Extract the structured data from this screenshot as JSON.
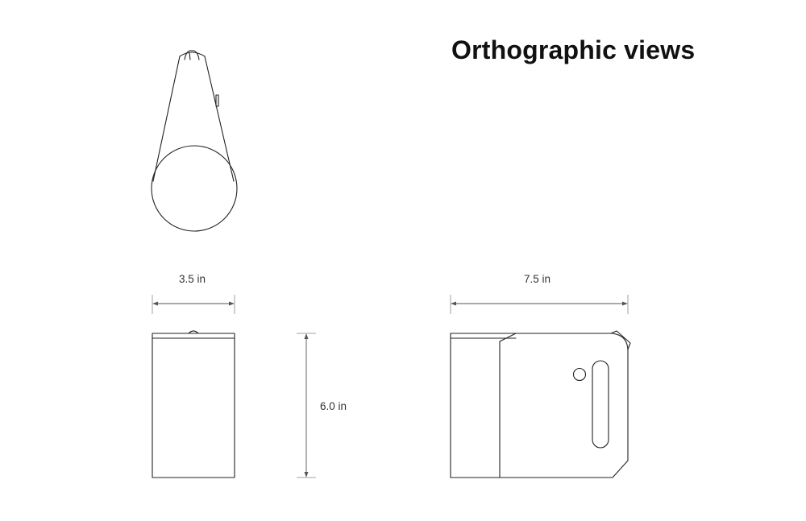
{
  "title": "Orthographic views",
  "dimensions": {
    "front_width": "3.5 in",
    "side_width": "7.5 in",
    "height": "6.0 in"
  },
  "views": [
    "top",
    "front",
    "side"
  ]
}
